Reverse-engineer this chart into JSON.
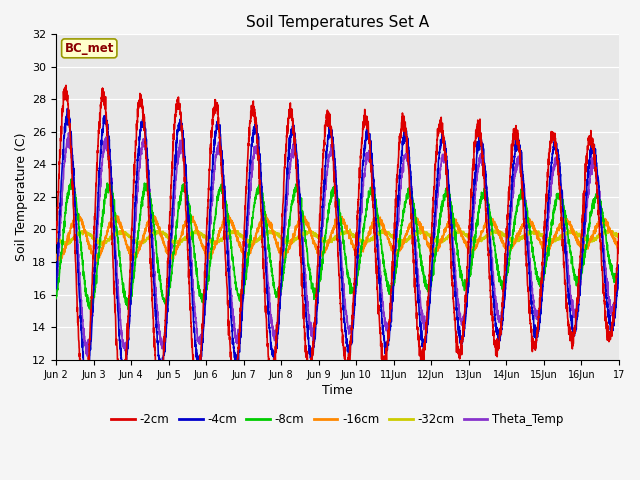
{
  "title": "Soil Temperatures Set A",
  "xlabel": "Time",
  "ylabel": "Soil Temperature (C)",
  "ylim": [
    12,
    32
  ],
  "xlim": [
    0,
    15
  ],
  "annotation": "BC_met",
  "plot_bg": "#e8e8e8",
  "fig_bg": "#f5f5f5",
  "grid_color": "#ffffff",
  "legend_labels": [
    "-2cm",
    "-4cm",
    "-8cm",
    "-16cm",
    "-32cm",
    "Theta_Temp"
  ],
  "legend_colors": [
    "#dd0000",
    "#0000cc",
    "#00cc00",
    "#ff8800",
    "#cccc00",
    "#8833cc"
  ],
  "xtick_labels": [
    "Jun 2",
    "Jun 3",
    "Jun 4",
    "Jun 5",
    "Jun 6",
    "Jun 7",
    "Jun 8",
    "Jun 9",
    "Jun 10",
    "11Jun",
    "12Jun",
    "13Jun",
    "14Jun",
    "15Jun",
    "16Jun",
    "17"
  ],
  "ytick_vals": [
    12,
    14,
    16,
    18,
    20,
    22,
    24,
    26,
    28,
    30,
    32
  ],
  "lw": 1.2
}
